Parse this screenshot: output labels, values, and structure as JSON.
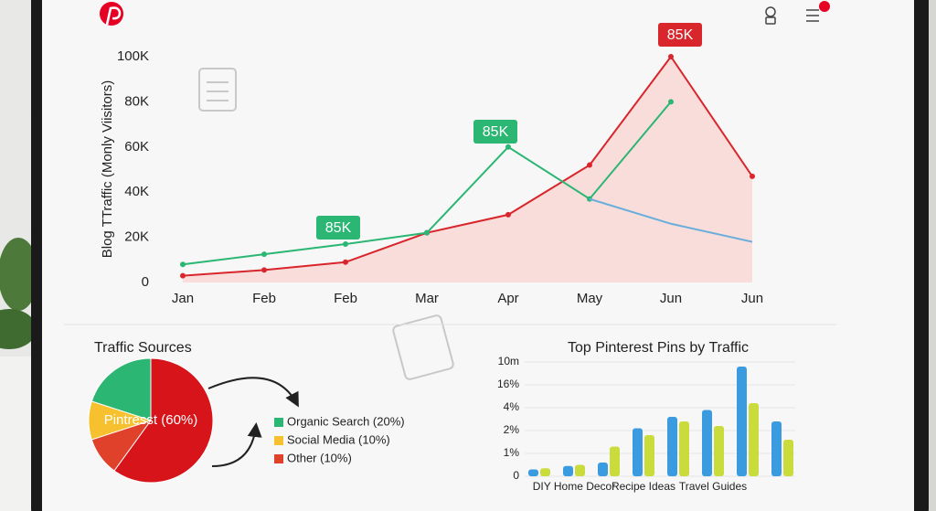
{
  "chart_data": [
    {
      "type": "line",
      "y_label": "Blog TTraffic (Monly Viisitors)",
      "categories": [
        "Jan",
        "Feb",
        "Feb",
        "Mar",
        "Apr",
        "May",
        "Jun",
        "Jun"
      ],
      "series": [
        {
          "color": "#d9262c",
          "values": [
            3000,
            5500,
            9000,
            22000,
            30000,
            52000,
            100000,
            47000
          ]
        },
        {
          "color": "#2bb673",
          "values": [
            8000,
            12500,
            17000,
            22000,
            60000,
            37000,
            80000,
            null
          ]
        },
        {
          "color": "#6aaedb",
          "values": [
            null,
            null,
            null,
            null,
            null,
            37000,
            26000,
            18000
          ]
        }
      ],
      "area_color": "#f9d6d3",
      "annotations": [
        "85K",
        "85K",
        "85K"
      ],
      "annotation_colors": [
        "#2bb673",
        "#2bb673",
        "#d9262c"
      ],
      "ylim": [
        0,
        100000
      ],
      "yticks": [
        0,
        {
          "value": 20000,
          "label": "20K"
        },
        {
          "value": 40000,
          "label": "40K"
        },
        {
          "value": 60000,
          "label": "60K"
        },
        {
          "value": 80000,
          "label": "80K"
        },
        {
          "value": 100000,
          "label": "100K"
        }
      ]
    },
    {
      "type": "pie",
      "title": "Traffic Sources",
      "categories": [
        "Organic Search (20%)",
        "Social Media (10%)",
        "Other (10%)",
        "Pintresst (60%)"
      ],
      "values": [
        20,
        10,
        10,
        60
      ],
      "colors": [
        "#2bb673",
        "#f6c02f",
        "#e0412a",
        "#d7141a"
      ]
    },
    {
      "type": "bar",
      "title": "Top Pinterest Pins by Traffic",
      "categories": [
        null,
        "DIY Home Decor",
        null,
        "Recipe Ideas",
        null,
        "Travel Guides",
        null,
        null
      ],
      "ylevels": [
        "0",
        "1%",
        "2%",
        "4%",
        "16%",
        "10m"
      ],
      "series": [
        {
          "color": "#3b9be0",
          "values": [
            0.3,
            0.45,
            0.6,
            2.1,
            2.6,
            2.9,
            4.8,
            2.4
          ]
        },
        {
          "color": "#c9dc3c",
          "values": [
            0.35,
            0.5,
            1.3,
            1.8,
            2.4,
            2.2,
            3.2,
            1.6
          ]
        }
      ]
    }
  ]
}
